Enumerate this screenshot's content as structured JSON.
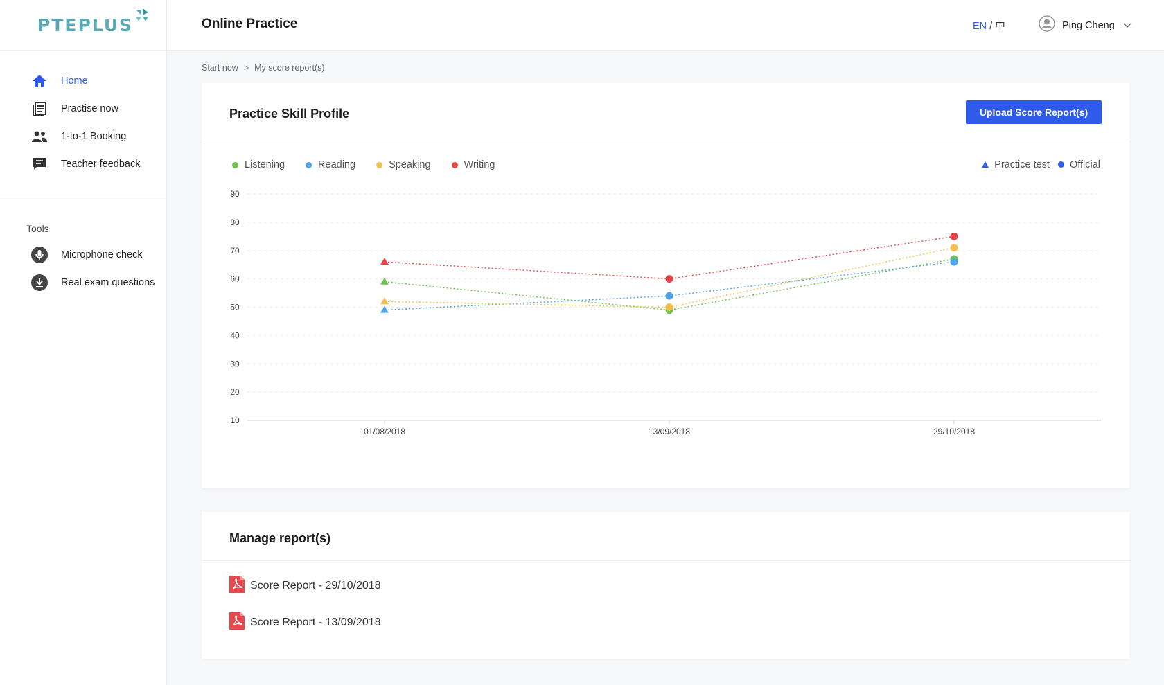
{
  "brand": {
    "name": "PTEPLUS"
  },
  "sidebar": {
    "items": [
      {
        "label": "Home",
        "icon": "home-icon"
      },
      {
        "label": "Practise now",
        "icon": "list-icon"
      },
      {
        "label": "1-to-1 Booking",
        "icon": "people-icon"
      },
      {
        "label": "Teacher feedback",
        "icon": "chat-icon"
      }
    ],
    "tools_title": "Tools",
    "tools": [
      {
        "label": "Microphone check",
        "icon": "microphone-icon"
      },
      {
        "label": "Real exam questions",
        "icon": "download-icon"
      }
    ]
  },
  "header": {
    "title": "Online Practice",
    "lang_en": "EN",
    "lang_sep": " / ",
    "lang_zh": "中",
    "user_name": "Ping Cheng"
  },
  "breadcrumb": {
    "items": [
      "Start now",
      "My score report(s)"
    ],
    "separator": ">"
  },
  "skill_profile": {
    "title": "Practice Skill Profile",
    "upload_label": "Upload Score Report(s)",
    "legend_practice": "Practice test",
    "legend_official": "Official"
  },
  "colors": {
    "accent": "#2f5bea",
    "listening": "#6cc24a",
    "reading": "#4fa3e8",
    "speaking": "#f3c04f",
    "writing": "#e8474a",
    "pdf": "#e5484d"
  },
  "chart_data": {
    "type": "line",
    "categories": [
      "01/08/2018",
      "13/09/2018",
      "29/10/2018"
    ],
    "marker_types": [
      "Practice test",
      "Official",
      "Official"
    ],
    "ylim": [
      10,
      90
    ],
    "yticks": [
      10,
      20,
      30,
      40,
      50,
      60,
      70,
      80,
      90
    ],
    "grid": true,
    "legend_placement": "top-left",
    "series": [
      {
        "name": "Listening",
        "values": [
          59,
          49,
          67
        ]
      },
      {
        "name": "Reading",
        "values": [
          49,
          54,
          66
        ]
      },
      {
        "name": "Speaking",
        "values": [
          52,
          50,
          71
        ]
      },
      {
        "name": "Writing",
        "values": [
          66,
          60,
          75
        ]
      }
    ]
  },
  "manage": {
    "title": "Manage report(s)",
    "reports": [
      {
        "label": "Score Report - 29/10/2018"
      },
      {
        "label": "Score Report - 13/09/2018"
      }
    ]
  }
}
